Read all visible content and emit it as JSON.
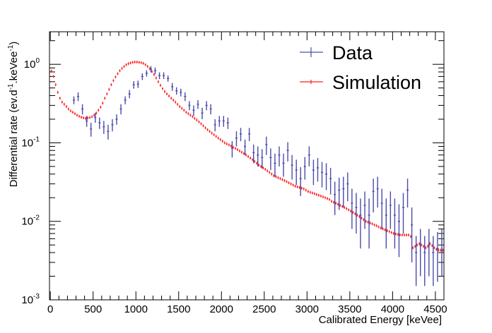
{
  "chart_data": {
    "type": "scatter",
    "xlabel": "Calibrated Energy [keVee]",
    "ylabel": "Differential rate (ev.d⁻¹.keVee⁻¹)",
    "xlim": [
      -10,
      4600
    ],
    "ylim": [
      0.001,
      2.6
    ],
    "yscale": "log",
    "grid": false,
    "legend_position": "top-right",
    "x_ticks": [
      0,
      500,
      1000,
      1500,
      2000,
      2500,
      3000,
      3500,
      4000,
      4500
    ],
    "x_tick_labels": [
      "0",
      "500",
      "1000",
      "1500",
      "2000",
      "2500",
      "3000",
      "3500",
      "4000",
      "4500"
    ],
    "y_ticks": [
      0.001,
      0.01,
      0.1,
      1
    ],
    "y_tick_labels": [
      {
        "base": "10",
        "exp": "-3"
      },
      {
        "base": "10",
        "exp": "-2"
      },
      {
        "base": "10",
        "exp": "-1"
      },
      {
        "base": "10",
        "exp": "0"
      }
    ],
    "series": [
      {
        "name": "Data",
        "color": "#4b4bab",
        "bin_width": 50,
        "points": [
          [
            275,
            0.35,
            0.04
          ],
          [
            325,
            0.39,
            0.05
          ],
          [
            375,
            0.27,
            0.04
          ],
          [
            425,
            0.19,
            0.03
          ],
          [
            475,
            0.15,
            0.03
          ],
          [
            525,
            0.21,
            0.03
          ],
          [
            575,
            0.18,
            0.03
          ],
          [
            625,
            0.16,
            0.03
          ],
          [
            675,
            0.14,
            0.03
          ],
          [
            725,
            0.17,
            0.03
          ],
          [
            775,
            0.2,
            0.03
          ],
          [
            825,
            0.27,
            0.04
          ],
          [
            875,
            0.35,
            0.04
          ],
          [
            925,
            0.42,
            0.05
          ],
          [
            975,
            0.55,
            0.06
          ],
          [
            1025,
            0.56,
            0.06
          ],
          [
            1075,
            0.7,
            0.07
          ],
          [
            1125,
            0.77,
            0.07
          ],
          [
            1175,
            0.87,
            0.08
          ],
          [
            1225,
            0.83,
            0.08
          ],
          [
            1275,
            0.72,
            0.07
          ],
          [
            1325,
            0.72,
            0.07
          ],
          [
            1375,
            0.66,
            0.06
          ],
          [
            1425,
            0.52,
            0.06
          ],
          [
            1475,
            0.46,
            0.05
          ],
          [
            1525,
            0.44,
            0.05
          ],
          [
            1575,
            0.39,
            0.05
          ],
          [
            1625,
            0.3,
            0.04
          ],
          [
            1675,
            0.26,
            0.04
          ],
          [
            1725,
            0.31,
            0.04
          ],
          [
            1775,
            0.24,
            0.04
          ],
          [
            1825,
            0.3,
            0.04
          ],
          [
            1875,
            0.27,
            0.04
          ],
          [
            1925,
            0.17,
            0.03
          ],
          [
            1975,
            0.19,
            0.03
          ],
          [
            2025,
            0.19,
            0.03
          ],
          [
            2075,
            0.18,
            0.03
          ],
          [
            2125,
            0.085,
            0.02
          ],
          [
            2175,
            0.115,
            0.025
          ],
          [
            2225,
            0.13,
            0.025
          ],
          [
            2275,
            0.09,
            0.02
          ],
          [
            2325,
            0.13,
            0.025
          ],
          [
            2375,
            0.075,
            0.02
          ],
          [
            2425,
            0.07,
            0.02
          ],
          [
            2475,
            0.065,
            0.018
          ],
          [
            2525,
            0.095,
            0.025
          ],
          [
            2575,
            0.065,
            0.02
          ],
          [
            2625,
            0.055,
            0.018
          ],
          [
            2675,
            0.07,
            0.02
          ],
          [
            2725,
            0.055,
            0.018
          ],
          [
            2775,
            0.08,
            0.022
          ],
          [
            2825,
            0.052,
            0.018
          ],
          [
            2875,
            0.045,
            0.016
          ],
          [
            2925,
            0.035,
            0.014
          ],
          [
            2975,
            0.05,
            0.016
          ],
          [
            3025,
            0.07,
            0.02
          ],
          [
            3075,
            0.045,
            0.016
          ],
          [
            3125,
            0.048,
            0.016
          ],
          [
            3175,
            0.042,
            0.015
          ],
          [
            3225,
            0.04,
            0.015
          ],
          [
            3275,
            0.035,
            0.013
          ],
          [
            3325,
            0.022,
            0.01
          ],
          [
            3375,
            0.025,
            0.011
          ],
          [
            3425,
            0.026,
            0.011
          ],
          [
            3475,
            0.03,
            0.012
          ],
          [
            3525,
            0.017,
            0.009
          ],
          [
            3575,
            0.015,
            0.008
          ],
          [
            3625,
            0.012,
            0.0075
          ],
          [
            3675,
            0.016,
            0.008
          ],
          [
            3725,
            0.012,
            0.0075
          ],
          [
            3775,
            0.024,
            0.011
          ],
          [
            3825,
            0.026,
            0.011
          ],
          [
            3875,
            0.017,
            0.009
          ],
          [
            3925,
            0.012,
            0.0075
          ],
          [
            3975,
            0.016,
            0.008
          ],
          [
            4025,
            0.012,
            0.0075
          ],
          [
            4075,
            0.01,
            0.0065
          ],
          [
            4125,
            0.015,
            0.008
          ],
          [
            4175,
            0.025,
            0.01
          ],
          [
            4225,
            0.009,
            0.006
          ],
          [
            4275,
            0.004,
            0.0025
          ],
          [
            4325,
            0.005,
            0.003
          ],
          [
            4375,
            0.004,
            0.0025
          ],
          [
            4425,
            0.005,
            0.003
          ],
          [
            4475,
            0.004,
            0.0025
          ],
          [
            4525,
            0.0045,
            0.0028
          ],
          [
            4575,
            0.005,
            0.003
          ]
        ]
      },
      {
        "name": "Simulation",
        "color": "#ff2020",
        "bin_width": 25,
        "points": [
          [
            12,
            0.82
          ],
          [
            37,
            0.7
          ],
          [
            62,
            0.55
          ],
          [
            87,
            0.44
          ],
          [
            112,
            0.37
          ],
          [
            137,
            0.33
          ],
          [
            162,
            0.31
          ],
          [
            187,
            0.29
          ],
          [
            212,
            0.27
          ],
          [
            237,
            0.255
          ],
          [
            262,
            0.245
          ],
          [
            287,
            0.235
          ],
          [
            312,
            0.225
          ],
          [
            337,
            0.218
          ],
          [
            362,
            0.212
          ],
          [
            387,
            0.208
          ],
          [
            412,
            0.205
          ],
          [
            437,
            0.207
          ],
          [
            462,
            0.21
          ],
          [
            487,
            0.215
          ],
          [
            512,
            0.225
          ],
          [
            537,
            0.24
          ],
          [
            562,
            0.26
          ],
          [
            587,
            0.285
          ],
          [
            612,
            0.32
          ],
          [
            637,
            0.37
          ],
          [
            662,
            0.42
          ],
          [
            687,
            0.48
          ],
          [
            712,
            0.55
          ],
          [
            737,
            0.62
          ],
          [
            762,
            0.69
          ],
          [
            787,
            0.76
          ],
          [
            812,
            0.83
          ],
          [
            837,
            0.89
          ],
          [
            862,
            0.94
          ],
          [
            887,
            0.99
          ],
          [
            912,
            1.02
          ],
          [
            937,
            1.04
          ],
          [
            962,
            1.06
          ],
          [
            987,
            1.07
          ],
          [
            1012,
            1.07
          ],
          [
            1037,
            1.06
          ],
          [
            1062,
            1.05
          ],
          [
            1087,
            1.03
          ],
          [
            1112,
            0.99
          ],
          [
            1137,
            0.94
          ],
          [
            1162,
            0.88
          ],
          [
            1187,
            0.81
          ],
          [
            1212,
            0.74
          ],
          [
            1237,
            0.67
          ],
          [
            1262,
            0.6
          ],
          [
            1287,
            0.54
          ],
          [
            1312,
            0.49
          ],
          [
            1337,
            0.45
          ],
          [
            1362,
            0.42
          ],
          [
            1387,
            0.395
          ],
          [
            1412,
            0.37
          ],
          [
            1437,
            0.35
          ],
          [
            1462,
            0.33
          ],
          [
            1487,
            0.31
          ],
          [
            1512,
            0.29
          ],
          [
            1537,
            0.275
          ],
          [
            1562,
            0.26
          ],
          [
            1587,
            0.245
          ],
          [
            1612,
            0.235
          ],
          [
            1637,
            0.225
          ],
          [
            1662,
            0.215
          ],
          [
            1687,
            0.205
          ],
          [
            1712,
            0.195
          ],
          [
            1737,
            0.185
          ],
          [
            1762,
            0.175
          ],
          [
            1787,
            0.165
          ],
          [
            1812,
            0.155
          ],
          [
            1837,
            0.147
          ],
          [
            1862,
            0.14
          ],
          [
            1887,
            0.133
          ],
          [
            1912,
            0.127
          ],
          [
            1937,
            0.121
          ],
          [
            1962,
            0.115
          ],
          [
            1987,
            0.11
          ],
          [
            2012,
            0.105
          ],
          [
            2037,
            0.1
          ],
          [
            2062,
            0.097
          ],
          [
            2087,
            0.094
          ],
          [
            2112,
            0.091
          ],
          [
            2137,
            0.088
          ],
          [
            2162,
            0.085
          ],
          [
            2187,
            0.082
          ],
          [
            2212,
            0.079
          ],
          [
            2237,
            0.076
          ],
          [
            2262,
            0.073
          ],
          [
            2287,
            0.07
          ],
          [
            2312,
            0.067
          ],
          [
            2337,
            0.064
          ],
          [
            2362,
            0.061
          ],
          [
            2387,
            0.058
          ],
          [
            2412,
            0.055
          ],
          [
            2437,
            0.052
          ],
          [
            2462,
            0.05
          ],
          [
            2487,
            0.048
          ],
          [
            2512,
            0.046
          ],
          [
            2537,
            0.044
          ],
          [
            2562,
            0.042
          ],
          [
            2587,
            0.04
          ],
          [
            2612,
            0.038
          ],
          [
            2637,
            0.037
          ],
          [
            2662,
            0.036
          ],
          [
            2687,
            0.035
          ],
          [
            2712,
            0.034
          ],
          [
            2737,
            0.033
          ],
          [
            2762,
            0.032
          ],
          [
            2787,
            0.031
          ],
          [
            2812,
            0.03
          ],
          [
            2837,
            0.029
          ],
          [
            2862,
            0.028
          ],
          [
            2887,
            0.0275
          ],
          [
            2912,
            0.027
          ],
          [
            2937,
            0.0265
          ],
          [
            2962,
            0.026
          ],
          [
            2987,
            0.025
          ],
          [
            3012,
            0.024
          ],
          [
            3037,
            0.0235
          ],
          [
            3062,
            0.023
          ],
          [
            3087,
            0.0225
          ],
          [
            3112,
            0.022
          ],
          [
            3137,
            0.0215
          ],
          [
            3162,
            0.021
          ],
          [
            3187,
            0.0205
          ],
          [
            3212,
            0.02
          ],
          [
            3237,
            0.0195
          ],
          [
            3262,
            0.019
          ],
          [
            3287,
            0.018
          ],
          [
            3312,
            0.0175
          ],
          [
            3337,
            0.017
          ],
          [
            3362,
            0.0165
          ],
          [
            3387,
            0.016
          ],
          [
            3412,
            0.0155
          ],
          [
            3437,
            0.015
          ],
          [
            3462,
            0.0145
          ],
          [
            3487,
            0.014
          ],
          [
            3512,
            0.0135
          ],
          [
            3537,
            0.013
          ],
          [
            3562,
            0.0125
          ],
          [
            3587,
            0.012
          ],
          [
            3612,
            0.0115
          ],
          [
            3637,
            0.011
          ],
          [
            3662,
            0.0105
          ],
          [
            3687,
            0.01
          ],
          [
            3712,
            0.0098
          ],
          [
            3737,
            0.0095
          ],
          [
            3762,
            0.0093
          ],
          [
            3787,
            0.009
          ],
          [
            3812,
            0.0088
          ],
          [
            3837,
            0.0085
          ],
          [
            3862,
            0.0082
          ],
          [
            3887,
            0.008
          ],
          [
            3912,
            0.0078
          ],
          [
            3937,
            0.0076
          ],
          [
            3962,
            0.0074
          ],
          [
            3987,
            0.0072
          ],
          [
            4012,
            0.007
          ],
          [
            4037,
            0.0069
          ],
          [
            4062,
            0.0068
          ],
          [
            4087,
            0.0067
          ],
          [
            4112,
            0.0067
          ],
          [
            4137,
            0.0067
          ],
          [
            4162,
            0.0067
          ],
          [
            4187,
            0.0067
          ],
          [
            4212,
            0.0064
          ],
          [
            4237,
            0.0046
          ],
          [
            4262,
            0.0048
          ],
          [
            4287,
            0.005
          ],
          [
            4312,
            0.0052
          ],
          [
            4337,
            0.005
          ],
          [
            4362,
            0.0048
          ],
          [
            4387,
            0.0046
          ],
          [
            4412,
            0.0048
          ],
          [
            4437,
            0.0052
          ],
          [
            4462,
            0.0049
          ],
          [
            4487,
            0.0046
          ],
          [
            4512,
            0.0044
          ],
          [
            4537,
            0.0043
          ],
          [
            4562,
            0.0043
          ],
          [
            4587,
            0.0043
          ]
        ]
      }
    ]
  }
}
